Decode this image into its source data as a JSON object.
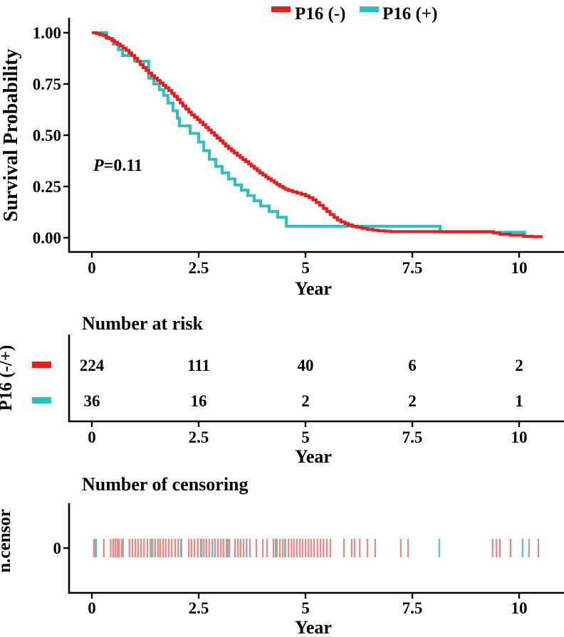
{
  "legend": {
    "items": [
      {
        "label": "P16 (-)",
        "color": "#e91e1a"
      },
      {
        "label": "P16 (+)",
        "color": "#2cc1c1"
      }
    ]
  },
  "main_plot": {
    "ylabel": "Survival Probability",
    "xlabel": "Year",
    "pvalue_italic": "P",
    "pvalue_rest": "=0.11",
    "yticks": [
      "1.00",
      "0.75",
      "0.50",
      "0.25",
      "0.00"
    ],
    "xticks": [
      "0",
      "2.5",
      "5",
      "7.5",
      "10"
    ]
  },
  "risk_table": {
    "title": "Number at risk",
    "ylabel": "P16 (-/+)",
    "xlabel": "Year",
    "rows": [
      {
        "name": "P16 (-)",
        "color": "#e91e1a",
        "counts": [
          "224",
          "111",
          "40",
          "6",
          "2"
        ]
      },
      {
        "name": "P16 (+)",
        "color": "#2cc1c1",
        "counts": [
          "36",
          "16",
          "2",
          "2",
          "1"
        ]
      }
    ]
  },
  "censor_plot": {
    "title": "Number of censoring",
    "ylabel": "n.censor",
    "xlabel": "Year",
    "ytick": "0"
  },
  "chart_data": {
    "type": "line",
    "title": "Kaplan-Meier survival curves by P16 status",
    "xlabel": "Year",
    "ylabel": "Survival Probability",
    "xlim": [
      0,
      10.6
    ],
    "ylim": [
      0,
      1
    ],
    "x_ticks": [
      0,
      2.5,
      5,
      7.5,
      10
    ],
    "y_ticks": [
      1.0,
      0.75,
      0.5,
      0.25,
      0.0
    ],
    "pvalue": "P=0.11",
    "legend_position": "top",
    "grid": false,
    "series": [
      {
        "name": "P16 (-)",
        "color": "#e91e1a",
        "type": "step",
        "end_time": 10.55,
        "points": [
          [
            0,
            1.0
          ],
          [
            0.1,
            0.996
          ],
          [
            0.18,
            0.991
          ],
          [
            0.27,
            0.986
          ],
          [
            0.33,
            0.977
          ],
          [
            0.4,
            0.971
          ],
          [
            0.47,
            0.962
          ],
          [
            0.53,
            0.953
          ],
          [
            0.6,
            0.944
          ],
          [
            0.67,
            0.935
          ],
          [
            0.73,
            0.925
          ],
          [
            0.8,
            0.914
          ],
          [
            0.87,
            0.902
          ],
          [
            0.93,
            0.889
          ],
          [
            1.0,
            0.875
          ],
          [
            1.07,
            0.86
          ],
          [
            1.13,
            0.845
          ],
          [
            1.2,
            0.83
          ],
          [
            1.27,
            0.816
          ],
          [
            1.33,
            0.803
          ],
          [
            1.4,
            0.791
          ],
          [
            1.47,
            0.779
          ],
          [
            1.53,
            0.767
          ],
          [
            1.6,
            0.755
          ],
          [
            1.67,
            0.743
          ],
          [
            1.73,
            0.731
          ],
          [
            1.8,
            0.718
          ],
          [
            1.87,
            0.704
          ],
          [
            1.93,
            0.69
          ],
          [
            2.0,
            0.674
          ],
          [
            2.07,
            0.658
          ],
          [
            2.13,
            0.643
          ],
          [
            2.2,
            0.628
          ],
          [
            2.27,
            0.613
          ],
          [
            2.33,
            0.6
          ],
          [
            2.4,
            0.588
          ],
          [
            2.47,
            0.576
          ],
          [
            2.53,
            0.564
          ],
          [
            2.6,
            0.551
          ],
          [
            2.67,
            0.538
          ],
          [
            2.73,
            0.525
          ],
          [
            2.8,
            0.512
          ],
          [
            2.87,
            0.499
          ],
          [
            2.93,
            0.486
          ],
          [
            3.0,
            0.473
          ],
          [
            3.07,
            0.46
          ],
          [
            3.13,
            0.447
          ],
          [
            3.2,
            0.435
          ],
          [
            3.27,
            0.424
          ],
          [
            3.33,
            0.413
          ],
          [
            3.4,
            0.402
          ],
          [
            3.47,
            0.391
          ],
          [
            3.53,
            0.381
          ],
          [
            3.6,
            0.371
          ],
          [
            3.67,
            0.36
          ],
          [
            3.73,
            0.349
          ],
          [
            3.8,
            0.338
          ],
          [
            3.87,
            0.327
          ],
          [
            3.93,
            0.316
          ],
          [
            4.0,
            0.306
          ],
          [
            4.07,
            0.296
          ],
          [
            4.13,
            0.287
          ],
          [
            4.2,
            0.278
          ],
          [
            4.27,
            0.269
          ],
          [
            4.33,
            0.26
          ],
          [
            4.4,
            0.251
          ],
          [
            4.47,
            0.243
          ],
          [
            4.53,
            0.236
          ],
          [
            4.6,
            0.23
          ],
          [
            4.7,
            0.224
          ],
          [
            4.8,
            0.218
          ],
          [
            4.9,
            0.212
          ],
          [
            5.0,
            0.205
          ],
          [
            5.08,
            0.196
          ],
          [
            5.17,
            0.185
          ],
          [
            5.25,
            0.172
          ],
          [
            5.33,
            0.158
          ],
          [
            5.42,
            0.143
          ],
          [
            5.5,
            0.128
          ],
          [
            5.58,
            0.113
          ],
          [
            5.67,
            0.099
          ],
          [
            5.75,
            0.087
          ],
          [
            5.83,
            0.077
          ],
          [
            5.92,
            0.069
          ],
          [
            6.0,
            0.062
          ],
          [
            6.1,
            0.056
          ],
          [
            6.2,
            0.051
          ],
          [
            6.32,
            0.046
          ],
          [
            6.45,
            0.041
          ],
          [
            6.58,
            0.037
          ],
          [
            6.7,
            0.034
          ],
          [
            6.85,
            0.032
          ],
          [
            7.0,
            0.03
          ],
          [
            9.4,
            0.023
          ],
          [
            9.55,
            0.017
          ],
          [
            9.8,
            0.012
          ],
          [
            10.1,
            0.007
          ],
          [
            10.3,
            0.005
          ]
        ]
      },
      {
        "name": "P16 (+)",
        "color": "#2cc1c1",
        "type": "step",
        "end_time": 10.3,
        "points": [
          [
            0,
            1.0
          ],
          [
            0.35,
            0.972
          ],
          [
            0.5,
            0.944
          ],
          [
            0.62,
            0.917
          ],
          [
            0.72,
            0.889
          ],
          [
            1.0,
            0.861
          ],
          [
            1.33,
            0.778
          ],
          [
            1.45,
            0.75
          ],
          [
            1.58,
            0.722
          ],
          [
            1.68,
            0.694
          ],
          [
            1.78,
            0.657
          ],
          [
            1.9,
            0.62
          ],
          [
            2.0,
            0.583
          ],
          [
            2.05,
            0.546
          ],
          [
            2.3,
            0.509
          ],
          [
            2.5,
            0.467
          ],
          [
            2.62,
            0.425
          ],
          [
            2.75,
            0.383
          ],
          [
            2.9,
            0.348
          ],
          [
            3.05,
            0.317
          ],
          [
            3.2,
            0.287
          ],
          [
            3.35,
            0.258
          ],
          [
            3.5,
            0.232
          ],
          [
            3.65,
            0.206
          ],
          [
            3.8,
            0.18
          ],
          [
            3.95,
            0.155
          ],
          [
            4.15,
            0.128
          ],
          [
            4.35,
            0.1
          ],
          [
            4.55,
            0.056
          ],
          [
            8.15,
            0.027
          ],
          [
            10.13,
            0.005
          ]
        ]
      }
    ],
    "number_at_risk": {
      "times": [
        0,
        2.5,
        5,
        7.5,
        10
      ],
      "rows": [
        {
          "name": "P16 (-)",
          "counts": [
            224,
            111,
            40,
            6,
            2
          ]
        },
        {
          "name": "P16 (+)",
          "counts": [
            36,
            16,
            2,
            2,
            1
          ]
        }
      ]
    },
    "censor": [
      {
        "name": "P16 (-)",
        "rug_color": "#f0837b",
        "times": [
          0.05,
          0.08,
          0.28,
          0.44,
          0.5,
          0.55,
          0.6,
          0.64,
          0.7,
          0.73,
          0.88,
          0.95,
          1.02,
          1.08,
          1.15,
          1.22,
          1.3,
          1.37,
          1.42,
          1.48,
          1.55,
          1.6,
          1.67,
          1.73,
          1.8,
          1.87,
          1.95,
          2.02,
          2.1,
          2.27,
          2.33,
          2.4,
          2.48,
          2.55,
          2.62,
          2.68,
          2.75,
          2.82,
          2.88,
          2.95,
          3.02,
          3.08,
          3.15,
          3.22,
          3.35,
          3.42,
          3.48,
          3.55,
          3.62,
          3.7,
          3.85,
          4.0,
          4.1,
          4.25,
          4.33,
          4.4,
          4.47,
          4.53,
          4.6,
          4.67,
          4.73,
          4.8,
          4.87,
          4.93,
          5.0,
          5.07,
          5.13,
          5.2,
          5.28,
          5.35,
          5.42,
          5.5,
          5.58,
          5.9,
          6.08,
          6.15,
          6.27,
          6.45,
          6.63,
          7.23,
          7.4,
          9.38,
          9.47,
          9.55,
          9.8,
          10.23,
          10.45
        ]
      },
      {
        "name": "P16 (+)",
        "rug_color": "#52c8c5",
        "times": [
          0.1,
          0.73,
          1.38,
          2.08,
          2.57,
          2.82,
          3.18,
          3.62,
          4.3,
          4.52,
          8.13,
          10.08
        ]
      }
    ]
  }
}
